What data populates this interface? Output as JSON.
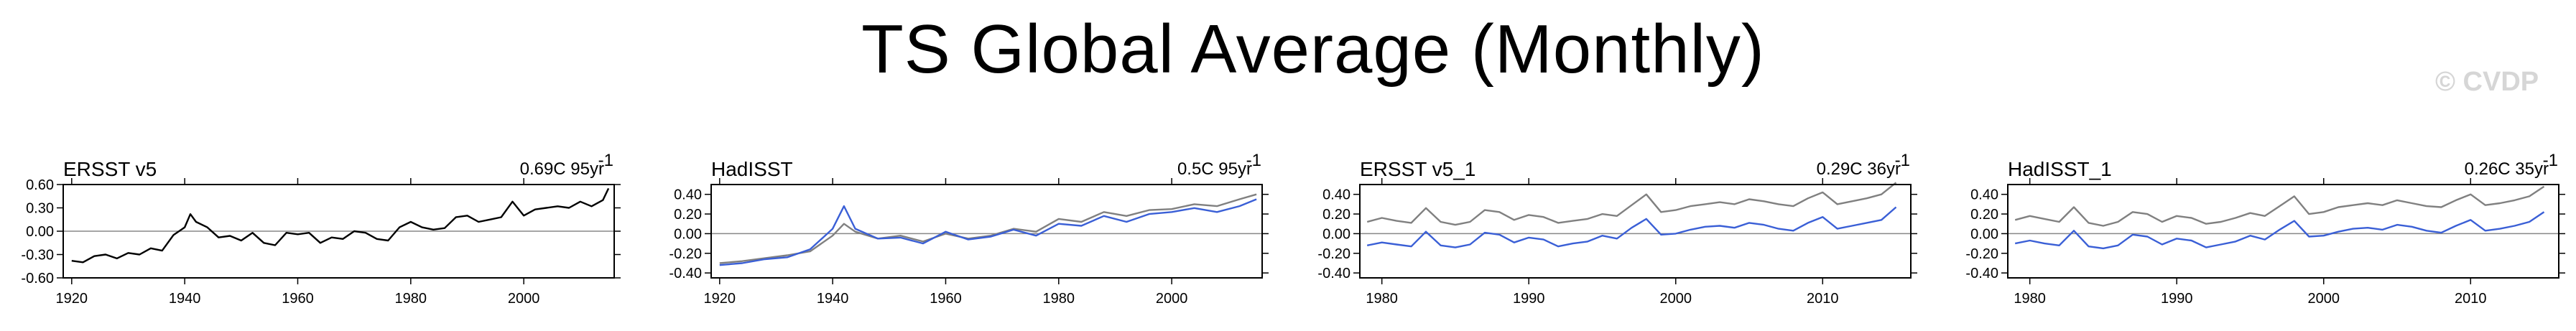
{
  "title": "TS Global Average (Monthly)",
  "credit": "© CVDP",
  "colors": {
    "obs": "#000000",
    "grey": "#808080",
    "blue": "#3a5fd6",
    "zero": "#888888"
  },
  "chart_data": [
    {
      "type": "line",
      "title": "ERSST v5",
      "trend": "0.69C 95yr",
      "trend_exp": "-1",
      "xlim": [
        1918.5,
        2016
      ],
      "ylim": [
        -0.6,
        0.6
      ],
      "xticks": [
        1920,
        1940,
        1960,
        1980,
        2000
      ],
      "xtick_labels": [
        "1920",
        "1940",
        "1960",
        "1980",
        "2000"
      ],
      "yticks": [
        -0.6,
        -0.3,
        0,
        0.3,
        0.6
      ],
      "ytick_labels": [
        "-0.60",
        "-0.30",
        "0.00",
        "0.30",
        "0.60"
      ],
      "series": [
        {
          "color": "#000000",
          "x": [
            1920,
            1922,
            1924,
            1926,
            1928,
            1930,
            1932,
            1934,
            1936,
            1938,
            1940,
            1941,
            1942,
            1944,
            1946,
            1948,
            1950,
            1952,
            1954,
            1956,
            1958,
            1960,
            1962,
            1964,
            1966,
            1968,
            1970,
            1972,
            1974,
            1976,
            1978,
            1980,
            1982,
            1984,
            1986,
            1988,
            1990,
            1992,
            1994,
            1996,
            1998,
            2000,
            2002,
            2004,
            2006,
            2008,
            2010,
            2012,
            2014,
            2015
          ],
          "y": [
            -0.38,
            -0.4,
            -0.32,
            -0.3,
            -0.35,
            -0.28,
            -0.3,
            -0.22,
            -0.25,
            -0.05,
            0.05,
            0.22,
            0.12,
            0.05,
            -0.08,
            -0.06,
            -0.12,
            -0.02,
            -0.15,
            -0.18,
            -0.02,
            -0.04,
            -0.02,
            -0.15,
            -0.08,
            -0.1,
            0.0,
            -0.02,
            -0.1,
            -0.12,
            0.05,
            0.12,
            0.05,
            0.02,
            0.04,
            0.18,
            0.2,
            0.12,
            0.15,
            0.18,
            0.38,
            0.2,
            0.28,
            0.3,
            0.32,
            0.3,
            0.38,
            0.32,
            0.4,
            0.55
          ]
        }
      ]
    },
    {
      "type": "line",
      "title": "HadISST",
      "trend": "0.5C 95yr",
      "trend_exp": "-1",
      "xlim": [
        1918.5,
        2016
      ],
      "ylim": [
        -0.45,
        0.5
      ],
      "xticks": [
        1920,
        1940,
        1960,
        1980,
        2000
      ],
      "xtick_labels": [
        "1920",
        "1940",
        "1960",
        "1980",
        "2000"
      ],
      "yticks": [
        -0.4,
        -0.2,
        0,
        0.2,
        0.4
      ],
      "ytick_labels": [
        "-0.40",
        "-0.20",
        "0.00",
        "0.20",
        "0.40"
      ],
      "series": [
        {
          "color": "#808080",
          "x": [
            1920,
            1924,
            1928,
            1932,
            1936,
            1940,
            1942,
            1944,
            1948,
            1952,
            1956,
            1960,
            1964,
            1968,
            1972,
            1976,
            1980,
            1984,
            1988,
            1992,
            1996,
            2000,
            2004,
            2008,
            2012,
            2015
          ],
          "y": [
            -0.3,
            -0.28,
            -0.25,
            -0.22,
            -0.18,
            -0.02,
            0.1,
            0.02,
            -0.05,
            -0.02,
            -0.08,
            0.0,
            -0.05,
            -0.02,
            0.05,
            0.02,
            0.15,
            0.12,
            0.22,
            0.18,
            0.24,
            0.25,
            0.3,
            0.28,
            0.35,
            0.4
          ]
        },
        {
          "color": "#3a5fd6",
          "x": [
            1920,
            1924,
            1928,
            1932,
            1936,
            1940,
            1942,
            1944,
            1948,
            1952,
            1956,
            1960,
            1964,
            1968,
            1972,
            1976,
            1980,
            1984,
            1988,
            1992,
            1996,
            2000,
            2004,
            2008,
            2012,
            2015
          ],
          "y": [
            -0.32,
            -0.3,
            -0.26,
            -0.24,
            -0.16,
            0.05,
            0.28,
            0.05,
            -0.05,
            -0.04,
            -0.1,
            0.02,
            -0.06,
            -0.03,
            0.04,
            -0.02,
            0.1,
            0.08,
            0.18,
            0.12,
            0.2,
            0.22,
            0.26,
            0.22,
            0.28,
            0.35
          ]
        }
      ]
    },
    {
      "type": "line",
      "title": "ERSST v5_1",
      "trend": "0.29C 36yr",
      "trend_exp": "-1",
      "xlim": [
        1978.5,
        2016
      ],
      "ylim": [
        -0.45,
        0.5
      ],
      "xticks": [
        1980,
        1990,
        2000,
        2010
      ],
      "xtick_labels": [
        "1980",
        "1990",
        "2000",
        "2010"
      ],
      "yticks": [
        -0.4,
        -0.2,
        0,
        0.2,
        0.4
      ],
      "ytick_labels": [
        "-0.40",
        "-0.20",
        "0.00",
        "0.20",
        "0.40"
      ],
      "series": [
        {
          "color": "#808080",
          "x": [
            1979,
            1980,
            1981,
            1982,
            1983,
            1984,
            1985,
            1986,
            1987,
            1988,
            1989,
            1990,
            1991,
            1992,
            1993,
            1994,
            1995,
            1996,
            1997,
            1998,
            1999,
            2000,
            2001,
            2002,
            2003,
            2004,
            2005,
            2006,
            2007,
            2008,
            2009,
            2010,
            2011,
            2012,
            2013,
            2014,
            2015
          ],
          "y": [
            0.12,
            0.16,
            0.13,
            0.11,
            0.26,
            0.12,
            0.09,
            0.12,
            0.24,
            0.22,
            0.14,
            0.19,
            0.17,
            0.11,
            0.13,
            0.15,
            0.2,
            0.18,
            0.29,
            0.4,
            0.22,
            0.24,
            0.28,
            0.3,
            0.32,
            0.3,
            0.35,
            0.33,
            0.3,
            0.28,
            0.36,
            0.42,
            0.3,
            0.33,
            0.36,
            0.4,
            0.52
          ]
        },
        {
          "color": "#3a5fd6",
          "x": [
            1979,
            1980,
            1981,
            1982,
            1983,
            1984,
            1985,
            1986,
            1987,
            1988,
            1989,
            1990,
            1991,
            1992,
            1993,
            1994,
            1995,
            1996,
            1997,
            1998,
            1999,
            2000,
            2001,
            2002,
            2003,
            2004,
            2005,
            2006,
            2007,
            2008,
            2009,
            2010,
            2011,
            2012,
            2013,
            2014,
            2015
          ],
          "y": [
            -0.12,
            -0.09,
            -0.11,
            -0.13,
            0.02,
            -0.12,
            -0.14,
            -0.11,
            0.01,
            -0.01,
            -0.09,
            -0.04,
            -0.06,
            -0.13,
            -0.1,
            -0.08,
            -0.02,
            -0.05,
            0.06,
            0.15,
            -0.01,
            0.0,
            0.04,
            0.07,
            0.08,
            0.06,
            0.11,
            0.09,
            0.05,
            0.03,
            0.11,
            0.17,
            0.05,
            0.08,
            0.11,
            0.14,
            0.27
          ]
        }
      ]
    },
    {
      "type": "line",
      "title": "HadISST_1",
      "trend": "0.26C 35yr",
      "trend_exp": "-1",
      "xlim": [
        1978.5,
        2016
      ],
      "ylim": [
        -0.45,
        0.5
      ],
      "xticks": [
        1980,
        1990,
        2000,
        2010
      ],
      "xtick_labels": [
        "1980",
        "1990",
        "2000",
        "2010"
      ],
      "yticks": [
        -0.4,
        -0.2,
        0,
        0.2,
        0.4
      ],
      "ytick_labels": [
        "-0.40",
        "-0.20",
        "0.00",
        "0.20",
        "0.40"
      ],
      "series": [
        {
          "color": "#808080",
          "x": [
            1979,
            1980,
            1981,
            1982,
            1983,
            1984,
            1985,
            1986,
            1987,
            1988,
            1989,
            1990,
            1991,
            1992,
            1993,
            1994,
            1995,
            1996,
            1997,
            1998,
            1999,
            2000,
            2001,
            2002,
            2003,
            2004,
            2005,
            2006,
            2007,
            2008,
            2009,
            2010,
            2011,
            2012,
            2013,
            2014,
            2015
          ],
          "y": [
            0.14,
            0.18,
            0.15,
            0.12,
            0.27,
            0.11,
            0.08,
            0.12,
            0.22,
            0.2,
            0.12,
            0.18,
            0.16,
            0.1,
            0.12,
            0.16,
            0.21,
            0.18,
            0.28,
            0.38,
            0.2,
            0.22,
            0.27,
            0.29,
            0.31,
            0.29,
            0.34,
            0.31,
            0.28,
            0.27,
            0.34,
            0.4,
            0.29,
            0.31,
            0.34,
            0.38,
            0.48
          ]
        },
        {
          "color": "#3a5fd6",
          "x": [
            1979,
            1980,
            1981,
            1982,
            1983,
            1984,
            1985,
            1986,
            1987,
            1988,
            1989,
            1990,
            1991,
            1992,
            1993,
            1994,
            1995,
            1996,
            1997,
            1998,
            1999,
            2000,
            2001,
            2002,
            2003,
            2004,
            2005,
            2006,
            2007,
            2008,
            2009,
            2010,
            2011,
            2012,
            2013,
            2014,
            2015
          ],
          "y": [
            -0.1,
            -0.07,
            -0.1,
            -0.12,
            0.03,
            -0.13,
            -0.15,
            -0.12,
            -0.01,
            -0.03,
            -0.11,
            -0.05,
            -0.07,
            -0.14,
            -0.11,
            -0.08,
            -0.02,
            -0.06,
            0.04,
            0.13,
            -0.03,
            -0.02,
            0.02,
            0.05,
            0.06,
            0.04,
            0.09,
            0.07,
            0.03,
            0.01,
            0.08,
            0.14,
            0.03,
            0.05,
            0.08,
            0.12,
            0.22
          ]
        }
      ]
    }
  ]
}
